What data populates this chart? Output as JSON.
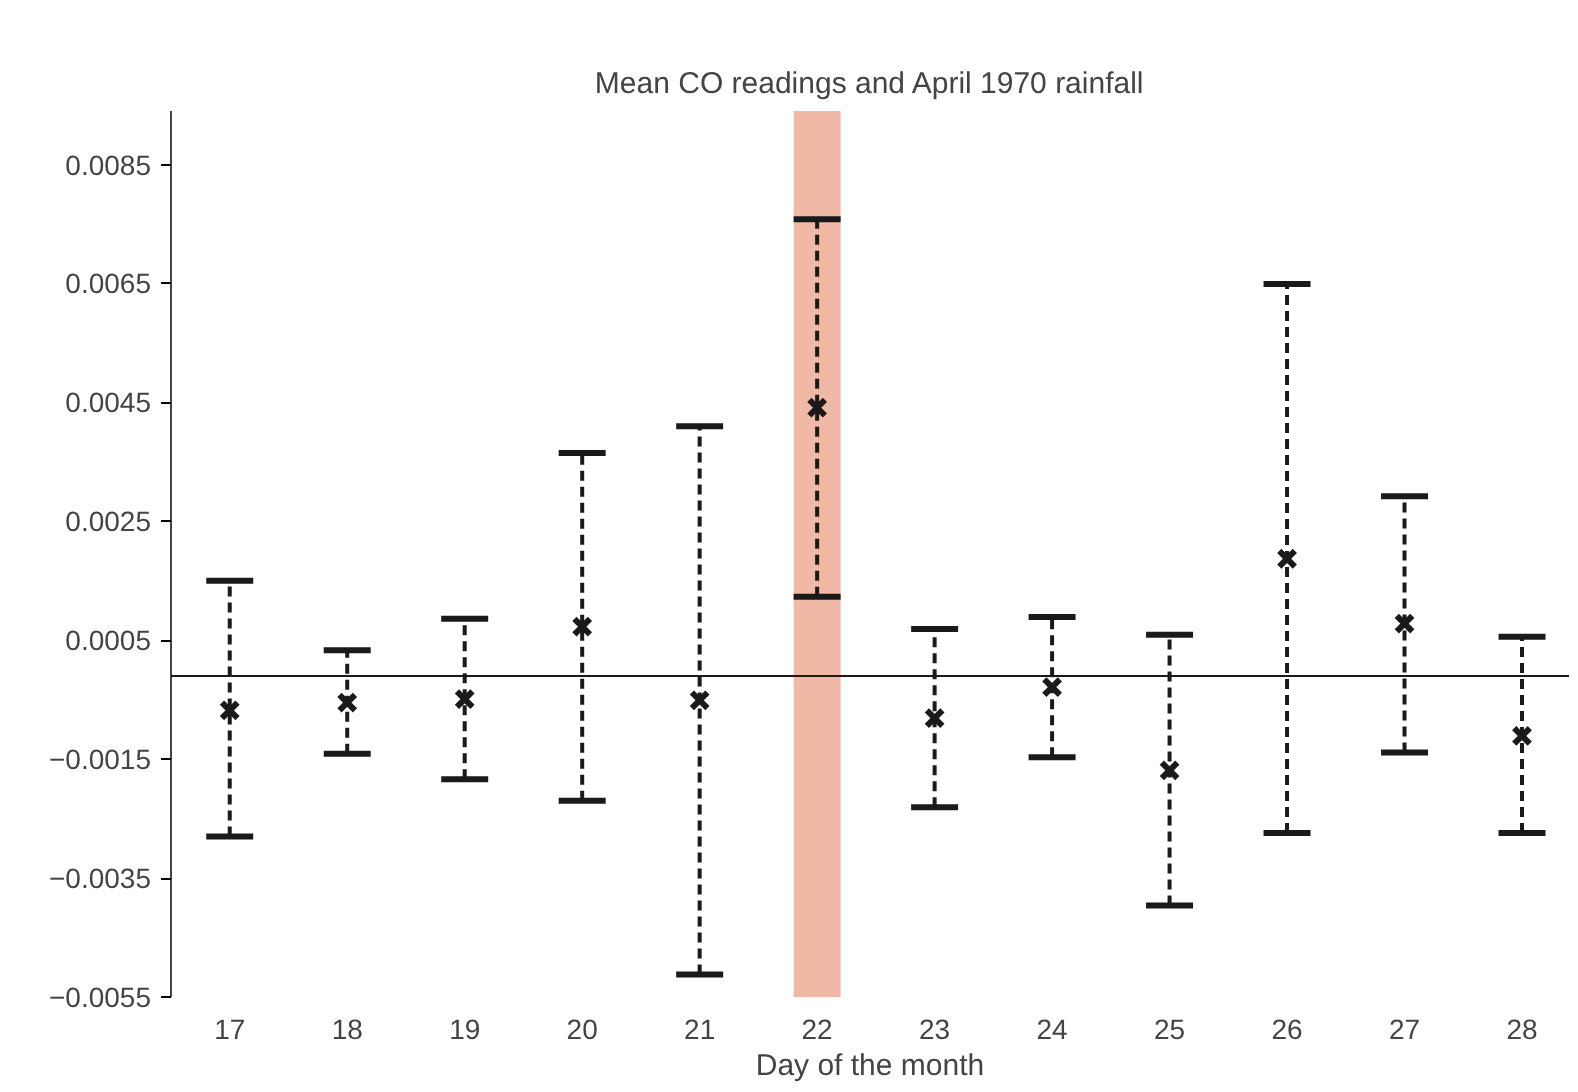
{
  "chart_data": {
    "type": "scatter",
    "title": "Mean CO readings and April 1970 rainfall",
    "xlabel": "Day of the month",
    "x": [
      17,
      18,
      19,
      20,
      21,
      22,
      23,
      24,
      25,
      26,
      27,
      28
    ],
    "series": [
      {
        "color": "#1a1a1a",
        "values": [
          -0.00068,
          -0.00055,
          -0.00049,
          0.00073,
          -0.00051,
          0.00441,
          -0.00081,
          -0.00029,
          -0.00169,
          0.00187,
          0.00078,
          -0.00111
        ],
        "errors": [
          [
            -0.0028,
            0.0015
          ],
          [
            -0.00141,
            0.00033
          ],
          [
            -0.00184,
            0.00086
          ],
          [
            -0.0022,
            0.00365
          ],
          [
            -0.00512,
            0.0041
          ],
          [
            0.00123,
            0.00758
          ],
          [
            -0.00231,
            0.00069
          ],
          [
            -0.00147,
            0.00089
          ],
          [
            -0.00396,
            0.00059
          ],
          [
            -0.00274,
            0.00649
          ],
          [
            -0.00139,
            0.00292
          ],
          [
            -0.00274,
            0.00056
          ]
        ]
      }
    ],
    "marker": "cross",
    "line_style": "dashed",
    "xlim": [
      16.5,
      28.4
    ],
    "xticks": [
      17,
      18,
      19,
      20,
      21,
      22,
      23,
      24,
      25,
      26,
      27,
      28
    ],
    "ylim": [
      -0.0055,
      0.0094
    ],
    "yticks": [
      {
        "value": -0.0055,
        "label": "−0.0055"
      },
      {
        "value": -0.0035,
        "label": "−0.0035"
      },
      {
        "value": -0.0015,
        "label": "−0.0015"
      },
      0.0005,
      0.0025,
      0.0045,
      0.0065,
      0.0085
    ],
    "ref_lines": [
      {
        "axis": "y",
        "value": -0.0001,
        "color": "#1a1a1a"
      }
    ],
    "bands": [
      {
        "axis": "x",
        "from": 21.8,
        "to": 22.2,
        "color": "#f0b9a5"
      }
    ],
    "grid": false
  }
}
